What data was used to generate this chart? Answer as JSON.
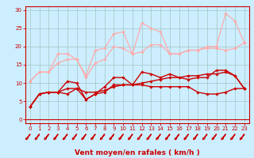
{
  "background_color": "#cceeff",
  "grid_color": "#aacccc",
  "xlabel": "Vent moyen/en rafales ( km/h )",
  "xlabel_color": "#cc0000",
  "xlabel_fontsize": 6.5,
  "tick_color": "#cc0000",
  "tick_fontsize": 5,
  "ylim": [
    -1,
    31
  ],
  "xlim": [
    -0.5,
    23.5
  ],
  "yticks": [
    0,
    5,
    10,
    15,
    20,
    25,
    30
  ],
  "xticks": [
    0,
    1,
    2,
    3,
    4,
    5,
    6,
    7,
    8,
    9,
    10,
    11,
    12,
    13,
    14,
    15,
    16,
    17,
    18,
    19,
    20,
    21,
    22,
    23
  ],
  "series": [
    {
      "x": [
        0,
        1,
        2,
        3,
        4,
        5,
        6,
        7,
        8,
        9,
        10,
        11,
        12,
        13,
        14,
        15,
        16,
        17,
        18,
        19,
        20,
        21,
        22,
        23
      ],
      "y": [
        10.5,
        13.0,
        13.0,
        18.0,
        18.0,
        16.5,
        12.0,
        19.0,
        19.5,
        23.5,
        24.0,
        18.0,
        26.5,
        25.0,
        24.0,
        18.0,
        18.0,
        19.0,
        19.0,
        20.0,
        20.0,
        29.0,
        27.0,
        21.0
      ],
      "color": "#ffaaaa",
      "lw": 0.9,
      "marker": "D",
      "ms": 1.8
    },
    {
      "x": [
        0,
        1,
        2,
        3,
        4,
        5,
        6,
        7,
        8,
        9,
        10,
        11,
        12,
        13,
        14,
        15,
        16,
        17,
        18,
        19,
        20,
        21,
        22,
        23
      ],
      "y": [
        10.5,
        13.0,
        13.0,
        15.5,
        16.5,
        16.5,
        11.5,
        15.5,
        16.5,
        20.0,
        19.5,
        18.0,
        18.5,
        20.5,
        20.5,
        18.0,
        18.0,
        19.0,
        19.0,
        19.5,
        19.5,
        19.0,
        19.5,
        21.0
      ],
      "color": "#ffaaaa",
      "lw": 0.9,
      "marker": "D",
      "ms": 1.8
    },
    {
      "x": [
        0,
        1,
        2,
        3,
        4,
        5,
        6,
        7,
        8,
        9,
        10,
        11,
        12,
        13,
        14,
        15,
        16,
        17,
        18,
        19,
        20,
        21,
        22,
        23
      ],
      "y": [
        3.5,
        7.0,
        7.5,
        7.5,
        10.5,
        10.0,
        5.5,
        7.0,
        9.0,
        11.5,
        11.5,
        9.5,
        13.0,
        12.5,
        11.5,
        12.5,
        11.5,
        11.0,
        11.5,
        11.5,
        13.5,
        13.5,
        12.0,
        8.5
      ],
      "color": "#cc0000",
      "lw": 1.0,
      "marker": "D",
      "ms": 1.8
    },
    {
      "x": [
        0,
        1,
        2,
        3,
        4,
        5,
        6,
        7,
        8,
        9,
        10,
        11,
        12,
        13,
        14,
        15,
        16,
        17,
        18,
        19,
        20,
        21,
        22,
        23
      ],
      "y": [
        3.5,
        7.0,
        7.5,
        7.5,
        7.0,
        8.5,
        5.5,
        7.0,
        7.5,
        9.5,
        9.5,
        9.5,
        9.5,
        9.0,
        9.0,
        9.0,
        9.0,
        9.0,
        7.5,
        7.0,
        7.0,
        7.5,
        8.5,
        8.5
      ],
      "color": "#cc0000",
      "lw": 1.0,
      "marker": "D",
      "ms": 1.8
    },
    {
      "x": [
        0,
        1,
        2,
        3,
        4,
        5,
        6,
        7,
        8,
        9,
        10,
        11,
        12,
        13,
        14,
        15,
        16,
        17,
        18,
        19,
        20,
        21,
        22,
        23
      ],
      "y": [
        3.5,
        7.0,
        7.5,
        7.5,
        8.5,
        8.5,
        7.5,
        7.5,
        8.0,
        9.0,
        9.5,
        9.5,
        10.0,
        10.5,
        11.0,
        11.5,
        11.5,
        12.0,
        12.0,
        12.5,
        12.5,
        13.0,
        12.0,
        8.5
      ],
      "color": "#cc0000",
      "lw": 1.0,
      "marker": "D",
      "ms": 1.8
    }
  ],
  "arrow_color": "#cc0000",
  "spine_color": "#cc0000",
  "hline_color": "#cc0000"
}
